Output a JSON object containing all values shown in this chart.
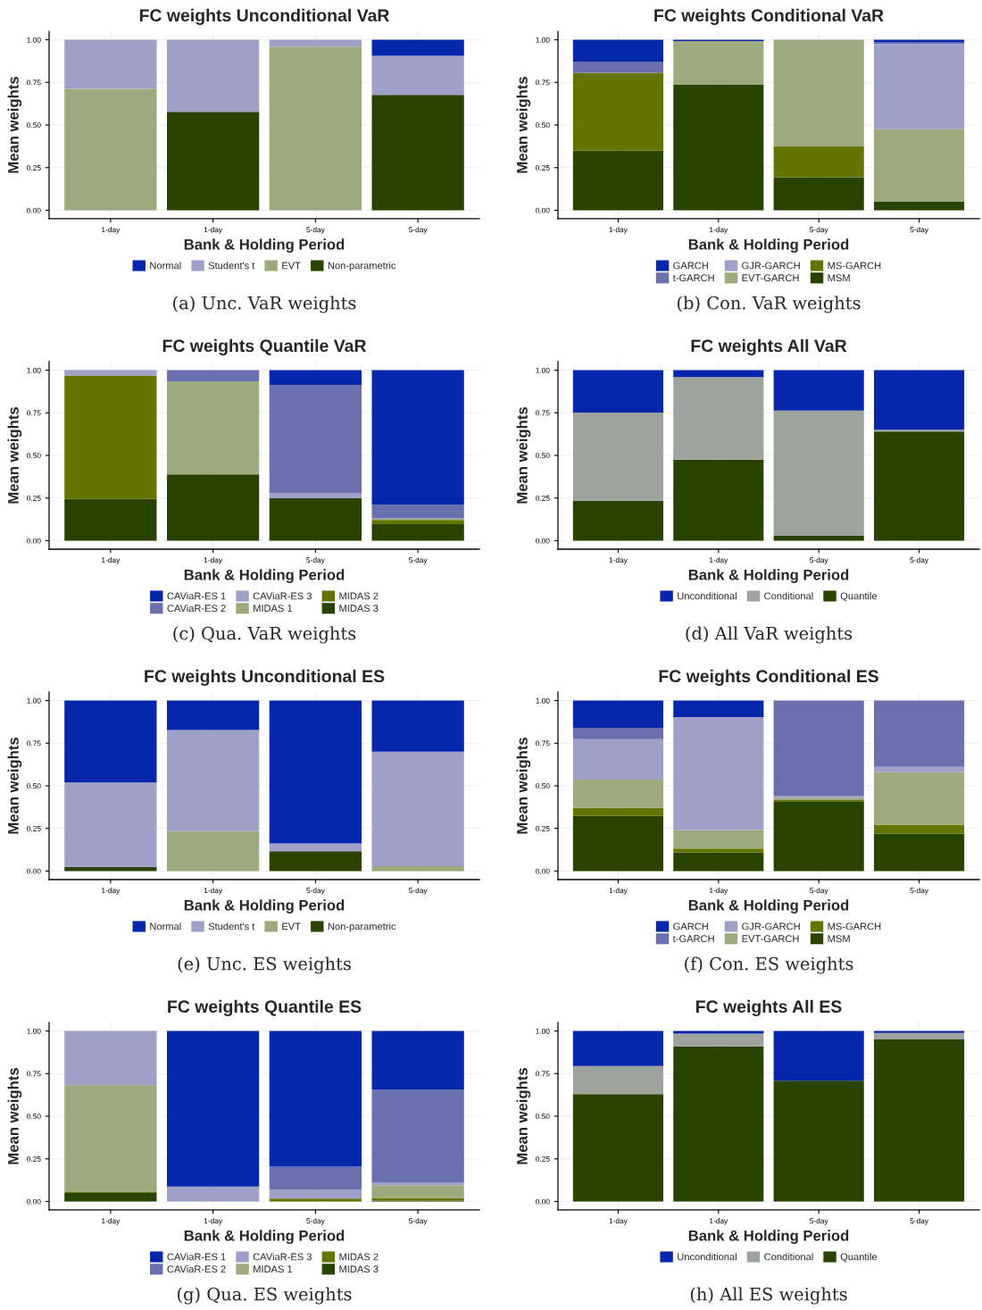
{
  "chart_data": [
    {
      "type": "bar",
      "stacked": true,
      "title": "FC weights Unconditional VaR",
      "xlabel": "Bank & Holding Period",
      "ylabel": "Mean weights",
      "categories": [
        "1-day",
        "1-day",
        "5-day",
        "5-day"
      ],
      "series": [
        {
          "name": "Non-parametric",
          "color": "#294300",
          "values": [
            0,
            0.577,
            0,
            0.677
          ]
        },
        {
          "name": "EVT",
          "color": "#9caa7e",
          "values": [
            0.712,
            0,
            0.959,
            0
          ]
        },
        {
          "name": "Student's t",
          "color": "#9fa0c8",
          "values": [
            0.288,
            0.423,
            0.041,
            0.229
          ]
        },
        {
          "name": "Normal",
          "color": "#0627ab",
          "values": [
            0,
            0,
            0,
            0.094
          ]
        }
      ],
      "ylim": [
        -0.05,
        1.05
      ],
      "yticks": [
        {
          "value": 0,
          "label": "0.00"
        },
        {
          "value": 0.25,
          "label": "0.25"
        },
        {
          "value": 0.5,
          "label": "0.50"
        },
        {
          "value": 0.75,
          "label": "0.75"
        },
        {
          "value": 1,
          "label": "1.00"
        }
      ],
      "grid": true,
      "legend": "bottom",
      "annotations": [
        "(a) Unc. VaR weights"
      ]
    },
    {
      "type": "bar",
      "stacked": true,
      "title": "FC weights Conditional VaR",
      "xlabel": "Bank & Holding Period",
      "ylabel": "Mean weights",
      "categories": [
        "1-day",
        "1-day",
        "5-day",
        "5-day"
      ],
      "series": [
        {
          "name": "MSM",
          "color": "#294300",
          "values": [
            0.35,
            0.738,
            0.194,
            0.052
          ]
        },
        {
          "name": "MS-GARCH",
          "color": "#637500",
          "values": [
            0.456,
            0,
            0.183,
            0
          ]
        },
        {
          "name": "EVT-GARCH",
          "color": "#9caa7e",
          "values": [
            0,
            0.254,
            0.623,
            0.424
          ]
        },
        {
          "name": "GJR-GARCH",
          "color": "#9fa0c8",
          "values": [
            0,
            0,
            0,
            0.499
          ]
        },
        {
          "name": "t-GARCH",
          "color": "#6a6fae",
          "values": [
            0.066,
            0,
            0,
            0.01
          ]
        },
        {
          "name": "GARCH",
          "color": "#0627ab",
          "values": [
            0.128,
            0.008,
            0,
            0.015
          ]
        }
      ],
      "ylim": [
        -0.05,
        1.05
      ],
      "yticks": [
        {
          "value": 0,
          "label": "0.00"
        },
        {
          "value": 0.25,
          "label": "0.25"
        },
        {
          "value": 0.5,
          "label": "0.50"
        },
        {
          "value": 0.75,
          "label": "0.75"
        },
        {
          "value": 1,
          "label": "1.00"
        }
      ],
      "grid": true,
      "legend": "bottom",
      "annotations": [
        "(b) Con. VaR weights"
      ]
    },
    {
      "type": "bar",
      "stacked": true,
      "title": "FC weights Quantile VaR",
      "xlabel": "Bank & Holding Period",
      "ylabel": "Mean weights",
      "categories": [
        "1-day",
        "1-day",
        "5-day",
        "5-day"
      ],
      "series": [
        {
          "name": "MIDAS 3",
          "color": "#294300",
          "values": [
            0.245,
            0.389,
            0.249,
            0.097
          ]
        },
        {
          "name": "MIDAS 2",
          "color": "#637500",
          "values": [
            0.724,
            0,
            0,
            0.024
          ]
        },
        {
          "name": "MIDAS 1",
          "color": "#9caa7e",
          "values": [
            0,
            0.545,
            0,
            0.007
          ]
        },
        {
          "name": "CAViaR-ES 3",
          "color": "#9fa0c8",
          "values": [
            0.031,
            0,
            0.031,
            0.005
          ]
        },
        {
          "name": "CAViaR-ES 2",
          "color": "#6a6fae",
          "values": [
            0,
            0.066,
            0.634,
            0.077
          ]
        },
        {
          "name": "CAViaR-ES 1",
          "color": "#0627ab",
          "values": [
            0,
            0,
            0.086,
            0.79
          ]
        }
      ],
      "ylim": [
        -0.05,
        1.05
      ],
      "yticks": [
        {
          "value": 0,
          "label": "0.00"
        },
        {
          "value": 0.25,
          "label": "0.25"
        },
        {
          "value": 0.5,
          "label": "0.50"
        },
        {
          "value": 0.75,
          "label": "0.75"
        },
        {
          "value": 1,
          "label": "1.00"
        }
      ],
      "grid": true,
      "legend": "bottom",
      "annotations": [
        "(c) Qua. VaR weights"
      ]
    },
    {
      "type": "bar",
      "stacked": true,
      "title": "FC weights All VaR",
      "xlabel": "Bank & Holding Period",
      "ylabel": "Mean weights",
      "categories": [
        "1-day",
        "1-day",
        "5-day",
        "5-day"
      ],
      "series": [
        {
          "name": "Quantile",
          "color": "#294300",
          "values": [
            0.234,
            0.475,
            0.029,
            0.64
          ]
        },
        {
          "name": "Conditional",
          "color": "#9ea3a0",
          "values": [
            0.518,
            0.485,
            0.734,
            0.011
          ]
        },
        {
          "name": "Unconditional",
          "color": "#0627ab",
          "values": [
            0.248,
            0.04,
            0.237,
            0.349
          ]
        }
      ],
      "ylim": [
        -0.05,
        1.05
      ],
      "yticks": [
        {
          "value": 0,
          "label": "0.00"
        },
        {
          "value": 0.25,
          "label": "0.25"
        },
        {
          "value": 0.5,
          "label": "0.50"
        },
        {
          "value": 0.75,
          "label": "0.75"
        },
        {
          "value": 1,
          "label": "1.00"
        }
      ],
      "grid": true,
      "legend": "bottom",
      "annotations": [
        "(d) All VaR weights"
      ]
    },
    {
      "type": "bar",
      "stacked": true,
      "title": "FC weights Unconditional ES",
      "xlabel": "Bank & Holding Period",
      "ylabel": "Mean weights",
      "categories": [
        "1-day",
        "1-day",
        "5-day",
        "5-day"
      ],
      "series": [
        {
          "name": "Non-parametric",
          "color": "#294300",
          "values": [
            0.025,
            0,
            0.116,
            0
          ]
        },
        {
          "name": "EVT",
          "color": "#9caa7e",
          "values": [
            0,
            0.235,
            0,
            0.029
          ]
        },
        {
          "name": "Student's t",
          "color": "#9fa0c8",
          "values": [
            0.495,
            0.592,
            0.046,
            0.671
          ]
        },
        {
          "name": "Normal",
          "color": "#0627ab",
          "values": [
            0.48,
            0.173,
            0.838,
            0.3
          ]
        }
      ],
      "ylim": [
        -0.05,
        1.05
      ],
      "yticks": [
        {
          "value": 0,
          "label": "0.00"
        },
        {
          "value": 0.25,
          "label": "0.25"
        },
        {
          "value": 0.5,
          "label": "0.50"
        },
        {
          "value": 0.75,
          "label": "0.75"
        },
        {
          "value": 1,
          "label": "1.00"
        }
      ],
      "grid": true,
      "legend": "bottom",
      "annotations": [
        "(e) Unc. ES weights"
      ]
    },
    {
      "type": "bar",
      "stacked": true,
      "title": "FC weights Conditional ES",
      "xlabel": "Bank & Holding Period",
      "ylabel": "Mean weights",
      "categories": [
        "1-day",
        "1-day",
        "5-day",
        "5-day"
      ],
      "series": [
        {
          "name": "MSM",
          "color": "#294300",
          "values": [
            0.323,
            0.109,
            0.409,
            0.218
          ]
        },
        {
          "name": "MS-GARCH",
          "color": "#637500",
          "values": [
            0.047,
            0.023,
            0.007,
            0.054
          ]
        },
        {
          "name": "EVT-GARCH",
          "color": "#9caa7e",
          "values": [
            0.167,
            0.109,
            0.014,
            0.308
          ]
        },
        {
          "name": "GJR-GARCH",
          "color": "#9fa0c8",
          "values": [
            0.237,
            0.662,
            0.01,
            0.031
          ]
        },
        {
          "name": "t-GARCH",
          "color": "#6a6fae",
          "values": [
            0.066,
            0,
            0.56,
            0.389
          ]
        },
        {
          "name": "GARCH",
          "color": "#0627ab",
          "values": [
            0.16,
            0.097,
            0,
            0
          ]
        }
      ],
      "ylim": [
        -0.05,
        1.05
      ],
      "yticks": [
        {
          "value": 0,
          "label": "0.00"
        },
        {
          "value": 0.25,
          "label": "0.25"
        },
        {
          "value": 0.5,
          "label": "0.50"
        },
        {
          "value": 0.75,
          "label": "0.75"
        },
        {
          "value": 1,
          "label": "1.00"
        }
      ],
      "grid": true,
      "legend": "bottom",
      "annotations": [
        "(f) Con. ES weights"
      ]
    },
    {
      "type": "bar",
      "stacked": true,
      "title": "FC weights Quantile ES",
      "xlabel": "Bank & Holding Period",
      "ylabel": "Mean weights",
      "categories": [
        "1-day",
        "1-day",
        "5-day",
        "5-day"
      ],
      "series": [
        {
          "name": "MIDAS 3",
          "color": "#294300",
          "values": [
            0.05,
            0,
            0,
            0.005
          ]
        },
        {
          "name": "MIDAS 2",
          "color": "#637500",
          "values": [
            0.008,
            0,
            0.017,
            0.016
          ]
        },
        {
          "name": "MIDAS 1",
          "color": "#9caa7e",
          "values": [
            0.624,
            0,
            0,
            0.074
          ]
        },
        {
          "name": "CAViaR-ES 3",
          "color": "#9fa0c8",
          "values": [
            0.318,
            0.087,
            0.051,
            0.018
          ]
        },
        {
          "name": "CAViaR-ES 2",
          "color": "#6a6fae",
          "values": [
            0,
            0,
            0.136,
            0.543
          ]
        },
        {
          "name": "CAViaR-ES 1",
          "color": "#0627ab",
          "values": [
            0,
            0.913,
            0.796,
            0.344
          ]
        }
      ],
      "ylim": [
        -0.05,
        1.05
      ],
      "yticks": [
        {
          "value": 0,
          "label": "0.00"
        },
        {
          "value": 0.25,
          "label": "0.25"
        },
        {
          "value": 0.5,
          "label": "0.50"
        },
        {
          "value": 0.75,
          "label": "0.75"
        },
        {
          "value": 1,
          "label": "1.00"
        }
      ],
      "grid": true,
      "legend": "bottom",
      "annotations": [
        "(g) Qua. ES weights"
      ]
    },
    {
      "type": "bar",
      "stacked": true,
      "title": "FC weights All ES",
      "xlabel": "Bank & Holding Period",
      "ylabel": "Mean weights",
      "categories": [
        "1-day",
        "1-day",
        "5-day",
        "5-day"
      ],
      "series": [
        {
          "name": "Quantile",
          "color": "#294300",
          "values": [
            0.629,
            0.91,
            0.708,
            0.95
          ]
        },
        {
          "name": "Conditional",
          "color": "#9ea3a0",
          "values": [
            0.166,
            0.074,
            0,
            0.039
          ]
        },
        {
          "name": "Unconditional",
          "color": "#0627ab",
          "values": [
            0.205,
            0.016,
            0.292,
            0.011
          ]
        }
      ],
      "ylim": [
        -0.05,
        1.05
      ],
      "yticks": [
        {
          "value": 0,
          "label": "0.00"
        },
        {
          "value": 0.25,
          "label": "0.25"
        },
        {
          "value": 0.5,
          "label": "0.50"
        },
        {
          "value": 0.75,
          "label": "0.75"
        },
        {
          "value": 1,
          "label": "1.00"
        }
      ],
      "grid": true,
      "legend": "bottom",
      "annotations": [
        "(h) All ES weights"
      ]
    }
  ]
}
